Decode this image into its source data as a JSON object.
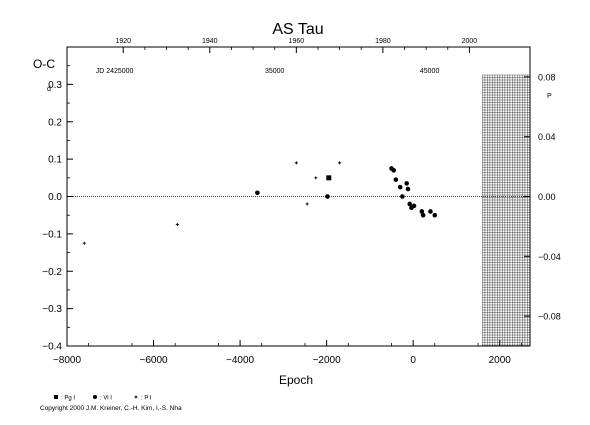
{
  "chart_data": {
    "type": "scatter",
    "title": "AS Tau",
    "ylabel": "O-C",
    "ylabel_unit": "d",
    "right_unit": "P",
    "xlabel": "Epoch",
    "xlim": [
      -8000,
      2700
    ],
    "ylim": [
      -0.4,
      0.4
    ],
    "x_ticks": [
      -8000,
      -6000,
      -4000,
      -2000,
      0,
      2000
    ],
    "x_tick_labels": [
      "−8000",
      "−6000",
      "−4000",
      "−2000",
      "0",
      "2000"
    ],
    "y_ticks": [
      -0.4,
      -0.3,
      -0.2,
      -0.1,
      0.0,
      0.1,
      0.2,
      0.3
    ],
    "y_tick_labels": [
      "−0.4",
      "−0.3",
      "−0.2",
      "−0.1",
      "0.0",
      "0.1",
      "0.2",
      "0.3"
    ],
    "top_axis_label": "JD 2425000",
    "top_year_ticks": [
      {
        "epoch": -6700,
        "label": "1920"
      },
      {
        "epoch": -4700,
        "label": "1940"
      },
      {
        "epoch": -2700,
        "label": "1960"
      },
      {
        "epoch": -700,
        "label": "1980"
      },
      {
        "epoch": 1300,
        "label": "2000"
      }
    ],
    "top_jd_ticks": [
      {
        "epoch": -6900,
        "label": "JD 2425000"
      },
      {
        "epoch": -3200,
        "label": "35000"
      },
      {
        "epoch": 380,
        "label": "45000"
      }
    ],
    "right_ticks": [
      -0.08,
      -0.04,
      0.0,
      0.04,
      0.08
    ],
    "right_tick_labels": [
      "−0.08",
      "−0.04",
      "0.00",
      "0.04",
      "0.08"
    ],
    "right_scale_per_day": 0.25,
    "hatch_region_epoch": [
      1600,
      2700
    ],
    "series": [
      {
        "name": ": Pg I",
        "marker": "square",
        "points": [
          {
            "x": -1950,
            "y": 0.05
          }
        ]
      },
      {
        "name": ": Vi I",
        "marker": "circle",
        "points": [
          {
            "x": -3600,
            "y": 0.01
          },
          {
            "x": -1980,
            "y": 0.0
          },
          {
            "x": -500,
            "y": 0.075
          },
          {
            "x": -450,
            "y": 0.07
          },
          {
            "x": -400,
            "y": 0.045
          },
          {
            "x": -300,
            "y": 0.025
          },
          {
            "x": -250,
            "y": 0.0
          },
          {
            "x": -150,
            "y": 0.035
          },
          {
            "x": -120,
            "y": 0.02
          },
          {
            "x": -80,
            "y": -0.02
          },
          {
            "x": -40,
            "y": -0.03
          },
          {
            "x": 20,
            "y": -0.025
          },
          {
            "x": 200,
            "y": -0.04
          },
          {
            "x": 230,
            "y": -0.05
          },
          {
            "x": 400,
            "y": -0.04
          },
          {
            "x": 500,
            "y": -0.05
          }
        ]
      },
      {
        "name": ": P I",
        "marker": "plus",
        "points": [
          {
            "x": -7600,
            "y": -0.125
          },
          {
            "x": -5450,
            "y": -0.075
          },
          {
            "x": -2700,
            "y": 0.09
          },
          {
            "x": -2450,
            "y": -0.02
          },
          {
            "x": -2250,
            "y": 0.05
          },
          {
            "x": -1700,
            "y": 0.09
          }
        ]
      }
    ],
    "copyright": "Copyright 2000 J.M. Kreiner, C.-H. Kim, I.-S. Nha"
  }
}
